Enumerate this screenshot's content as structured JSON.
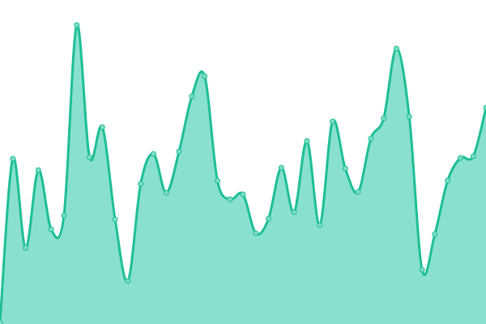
{
  "chart_data": {
    "type": "area",
    "title": "",
    "xlabel": "",
    "ylabel": "",
    "x": [
      0,
      1,
      2,
      3,
      4,
      5,
      6,
      7,
      8,
      9,
      10,
      11,
      12,
      13,
      14,
      15,
      16,
      17,
      18,
      19,
      20,
      21,
      22,
      23,
      24,
      25,
      26,
      27,
      28,
      29,
      30,
      31,
      32,
      33,
      34,
      35,
      36,
      37,
      38
    ],
    "values": [
      2,
      204,
      94,
      190,
      117,
      134,
      369,
      206,
      243,
      129,
      53,
      173,
      210,
      162,
      213,
      281,
      306,
      177,
      154,
      160,
      112,
      130,
      193,
      138,
      226,
      122,
      250,
      192,
      163,
      229,
      254,
      340,
      256,
      67,
      111,
      177,
      205,
      207,
      267
    ],
    "ylim": [
      0,
      400
    ],
    "grid": false,
    "axes_visible": false,
    "colors": {
      "line": "#1dbf95",
      "fill": "#8ae0d0",
      "point_fill": "#80dcc6",
      "point_stroke": "#1dbf95"
    }
  }
}
